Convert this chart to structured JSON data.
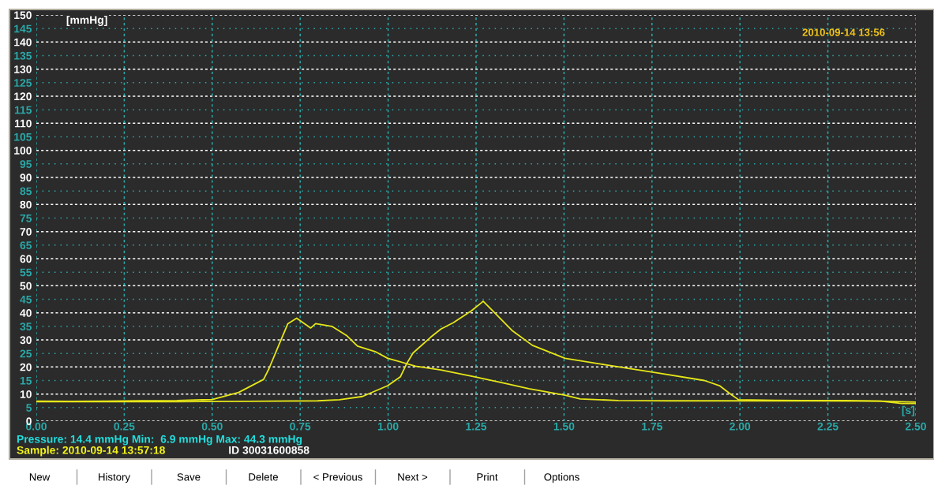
{
  "chart_data": {
    "type": "line",
    "ylabel": "[mmHg]",
    "xlabel": "[s]",
    "xlim": [
      0,
      2.5
    ],
    "ylim": [
      0,
      150
    ],
    "xticks": [
      {
        "value": 0,
        "label": "0.00"
      },
      {
        "value": 0.25,
        "label": "0.25"
      },
      {
        "value": 0.5,
        "label": "0.50"
      },
      {
        "value": 0.75,
        "label": "0.75"
      },
      {
        "value": 1,
        "label": "1.00"
      },
      {
        "value": 1.25,
        "label": "1.25"
      },
      {
        "value": 1.5,
        "label": "1.50"
      },
      {
        "value": 1.75,
        "label": "1.75"
      },
      {
        "value": 2,
        "label": "2.00"
      },
      {
        "value": 2.25,
        "label": "2.25"
      },
      {
        "value": 2.5,
        "label": "2.50"
      }
    ],
    "yticks": [
      0,
      5,
      10,
      15,
      20,
      25,
      30,
      35,
      40,
      45,
      50,
      55,
      60,
      65,
      70,
      75,
      80,
      85,
      90,
      95,
      100,
      105,
      110,
      115,
      120,
      125,
      130,
      135,
      140,
      145,
      150
    ],
    "grid": true,
    "legend": false,
    "marker": "none",
    "line_style": "solid",
    "series": [
      {
        "color": "#e6e619",
        "x": [
          0,
          0.1,
          0.2,
          0.3,
          0.4,
          0.5,
          0.575,
          0.646,
          0.661,
          0.689,
          0.715,
          0.74,
          0.78,
          0.794,
          0.84,
          0.883,
          0.913,
          0.963,
          0.999,
          1.078,
          1.15,
          1.244,
          1.33,
          1.4,
          1.503,
          1.546,
          1.654,
          1.8,
          2.0,
          2.2,
          2.4,
          2.46,
          2.5
        ],
        "values": [
          7.4,
          7.3,
          7.4,
          7.5,
          7.6,
          8,
          10.6,
          15.4,
          19.3,
          28,
          36,
          38,
          34.4,
          36,
          35,
          31.5,
          27.7,
          25.7,
          23.2,
          20.3,
          18.9,
          16.4,
          14,
          12,
          9.6,
          8.2,
          7.6,
          7.5,
          7.5,
          7.5,
          7.4,
          6.5,
          6.5
        ]
      },
      {
        "color": "#e6e619",
        "x": [
          0,
          0.2,
          0.4,
          0.6,
          0.8,
          0.862,
          0.927,
          0.999,
          1.035,
          1.053,
          1.071,
          1.121,
          1.15,
          1.186,
          1.237,
          1.266,
          1.27,
          1.294,
          1.352,
          1.41,
          1.503,
          1.618,
          1.762,
          1.899,
          1.942,
          1.971,
          1.996,
          2.1,
          2.2,
          2.3,
          2.4,
          2.5
        ],
        "values": [
          7.2,
          7.2,
          7.2,
          7.3,
          7.5,
          7.9,
          9.1,
          13.1,
          16.4,
          21.3,
          25.2,
          31,
          34,
          36.4,
          40.8,
          43.8,
          44.3,
          41.2,
          33.5,
          28,
          23.2,
          20.8,
          17.9,
          15,
          13.1,
          10.2,
          7.9,
          7.7,
          7.6,
          7.6,
          7.4,
          7
        ]
      }
    ],
    "annotations": [
      "2010-09-14 13:56",
      "Pressure: 14.4 mmHg Min:  6.9 mmHg Max: 44.3 mmHg",
      "Sample: 2010-09-14 13:57:18",
      "ID 30031600858",
      "New",
      "History",
      "Save",
      "Delete",
      "< Previous",
      "Next >",
      "Print",
      "Options"
    ]
  }
}
